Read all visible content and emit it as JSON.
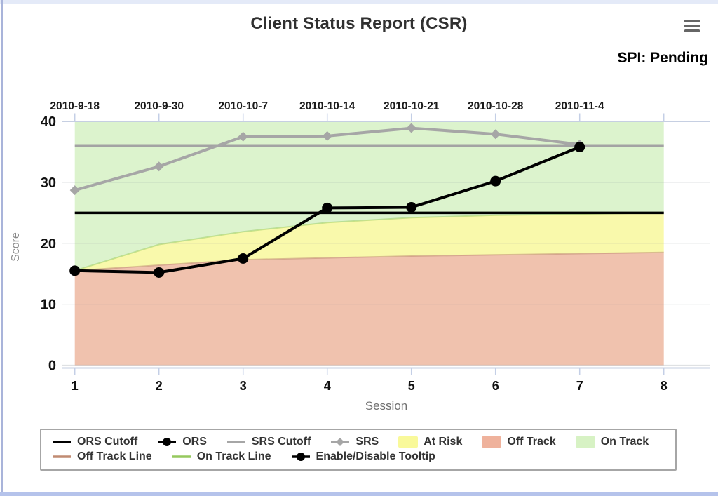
{
  "header": {
    "title": "Client Status Report (CSR)",
    "subtitle": "SPI: Pending"
  },
  "chart_data": {
    "type": "line",
    "title": "Client Status Report (CSR)",
    "xlabel": "Session",
    "ylabel": "Score",
    "ylim": [
      0,
      40
    ],
    "yticks": [
      0,
      10,
      20,
      30,
      40
    ],
    "sessions": [
      1,
      2,
      3,
      4,
      5,
      6,
      7,
      8
    ],
    "x_tick_labels": [
      "1",
      "2",
      "3",
      "4",
      "5",
      "6",
      "7",
      "8"
    ],
    "top_axis_dates": [
      "2010-9-18",
      "2010-9-30",
      "2010-10-7",
      "2010-10-14",
      "2010-10-21",
      "2010-10-28",
      "2010-11-4"
    ],
    "grid": true,
    "legend_position": "bottom",
    "cutoffs": [
      {
        "name": "ORS Cutoff",
        "value": 25,
        "color": "#000000",
        "width": 3.5
      },
      {
        "name": "SRS Cutoff",
        "value": 36,
        "color": "#a3a3a3",
        "width": 4.5
      }
    ],
    "series": [
      {
        "name": "SRS",
        "color": "#a6a6a6",
        "width": 4,
        "marker": "diamond",
        "sessions": [
          1,
          2,
          3,
          4,
          5,
          6,
          7
        ],
        "values": [
          28.7,
          32.6,
          37.5,
          37.6,
          38.9,
          37.9,
          36.2
        ]
      },
      {
        "name": "ORS",
        "color": "#000000",
        "width": 4,
        "marker": "circle",
        "sessions": [
          1,
          2,
          3,
          4,
          5,
          6,
          7
        ],
        "values": [
          15.5,
          15.2,
          17.5,
          25.8,
          25.9,
          30.2,
          35.8
        ]
      }
    ],
    "bands": {
      "x": [
        1,
        2,
        3,
        4,
        5,
        6,
        7,
        8
      ],
      "off_track_line": [
        15.5,
        16.4,
        17.3,
        17.6,
        17.9,
        18.1,
        18.3,
        18.5
      ],
      "on_track_line": [
        15.5,
        19.8,
        21.9,
        23.4,
        24.2,
        24.6,
        24.8,
        25.0
      ],
      "top": 40,
      "colors": {
        "off_track": "#f0c2ae",
        "at_risk": "#f9f9ab",
        "on_track": "#dcf3cd",
        "off_track_line": "#c08b72",
        "on_track_line": "#95c95e"
      }
    }
  },
  "legend": {
    "rows": [
      [
        {
          "label": "ORS Cutoff",
          "swatch": "line",
          "color": "#000000"
        },
        {
          "label": "ORS",
          "swatch": "line-circle",
          "color": "#000000"
        },
        {
          "label": "SRS Cutoff",
          "swatch": "line",
          "color": "#a6a6a6"
        },
        {
          "label": "SRS",
          "swatch": "line-diamond",
          "color": "#a6a6a6"
        },
        {
          "label": "At Risk",
          "swatch": "box",
          "color": "#f9f99a"
        },
        {
          "label": "Off Track",
          "swatch": "box",
          "color": "#efb29c"
        },
        {
          "label": "On Track",
          "swatch": "box",
          "color": "#d7f2c4"
        }
      ],
      [
        {
          "label": "Off Track Line",
          "swatch": "line",
          "color": "#c08b72"
        },
        {
          "label": "On Track Line",
          "swatch": "line",
          "color": "#95c95e"
        },
        {
          "label": "Enable/Disable Tooltip",
          "swatch": "line-circle",
          "color": "#000000"
        }
      ]
    ]
  }
}
